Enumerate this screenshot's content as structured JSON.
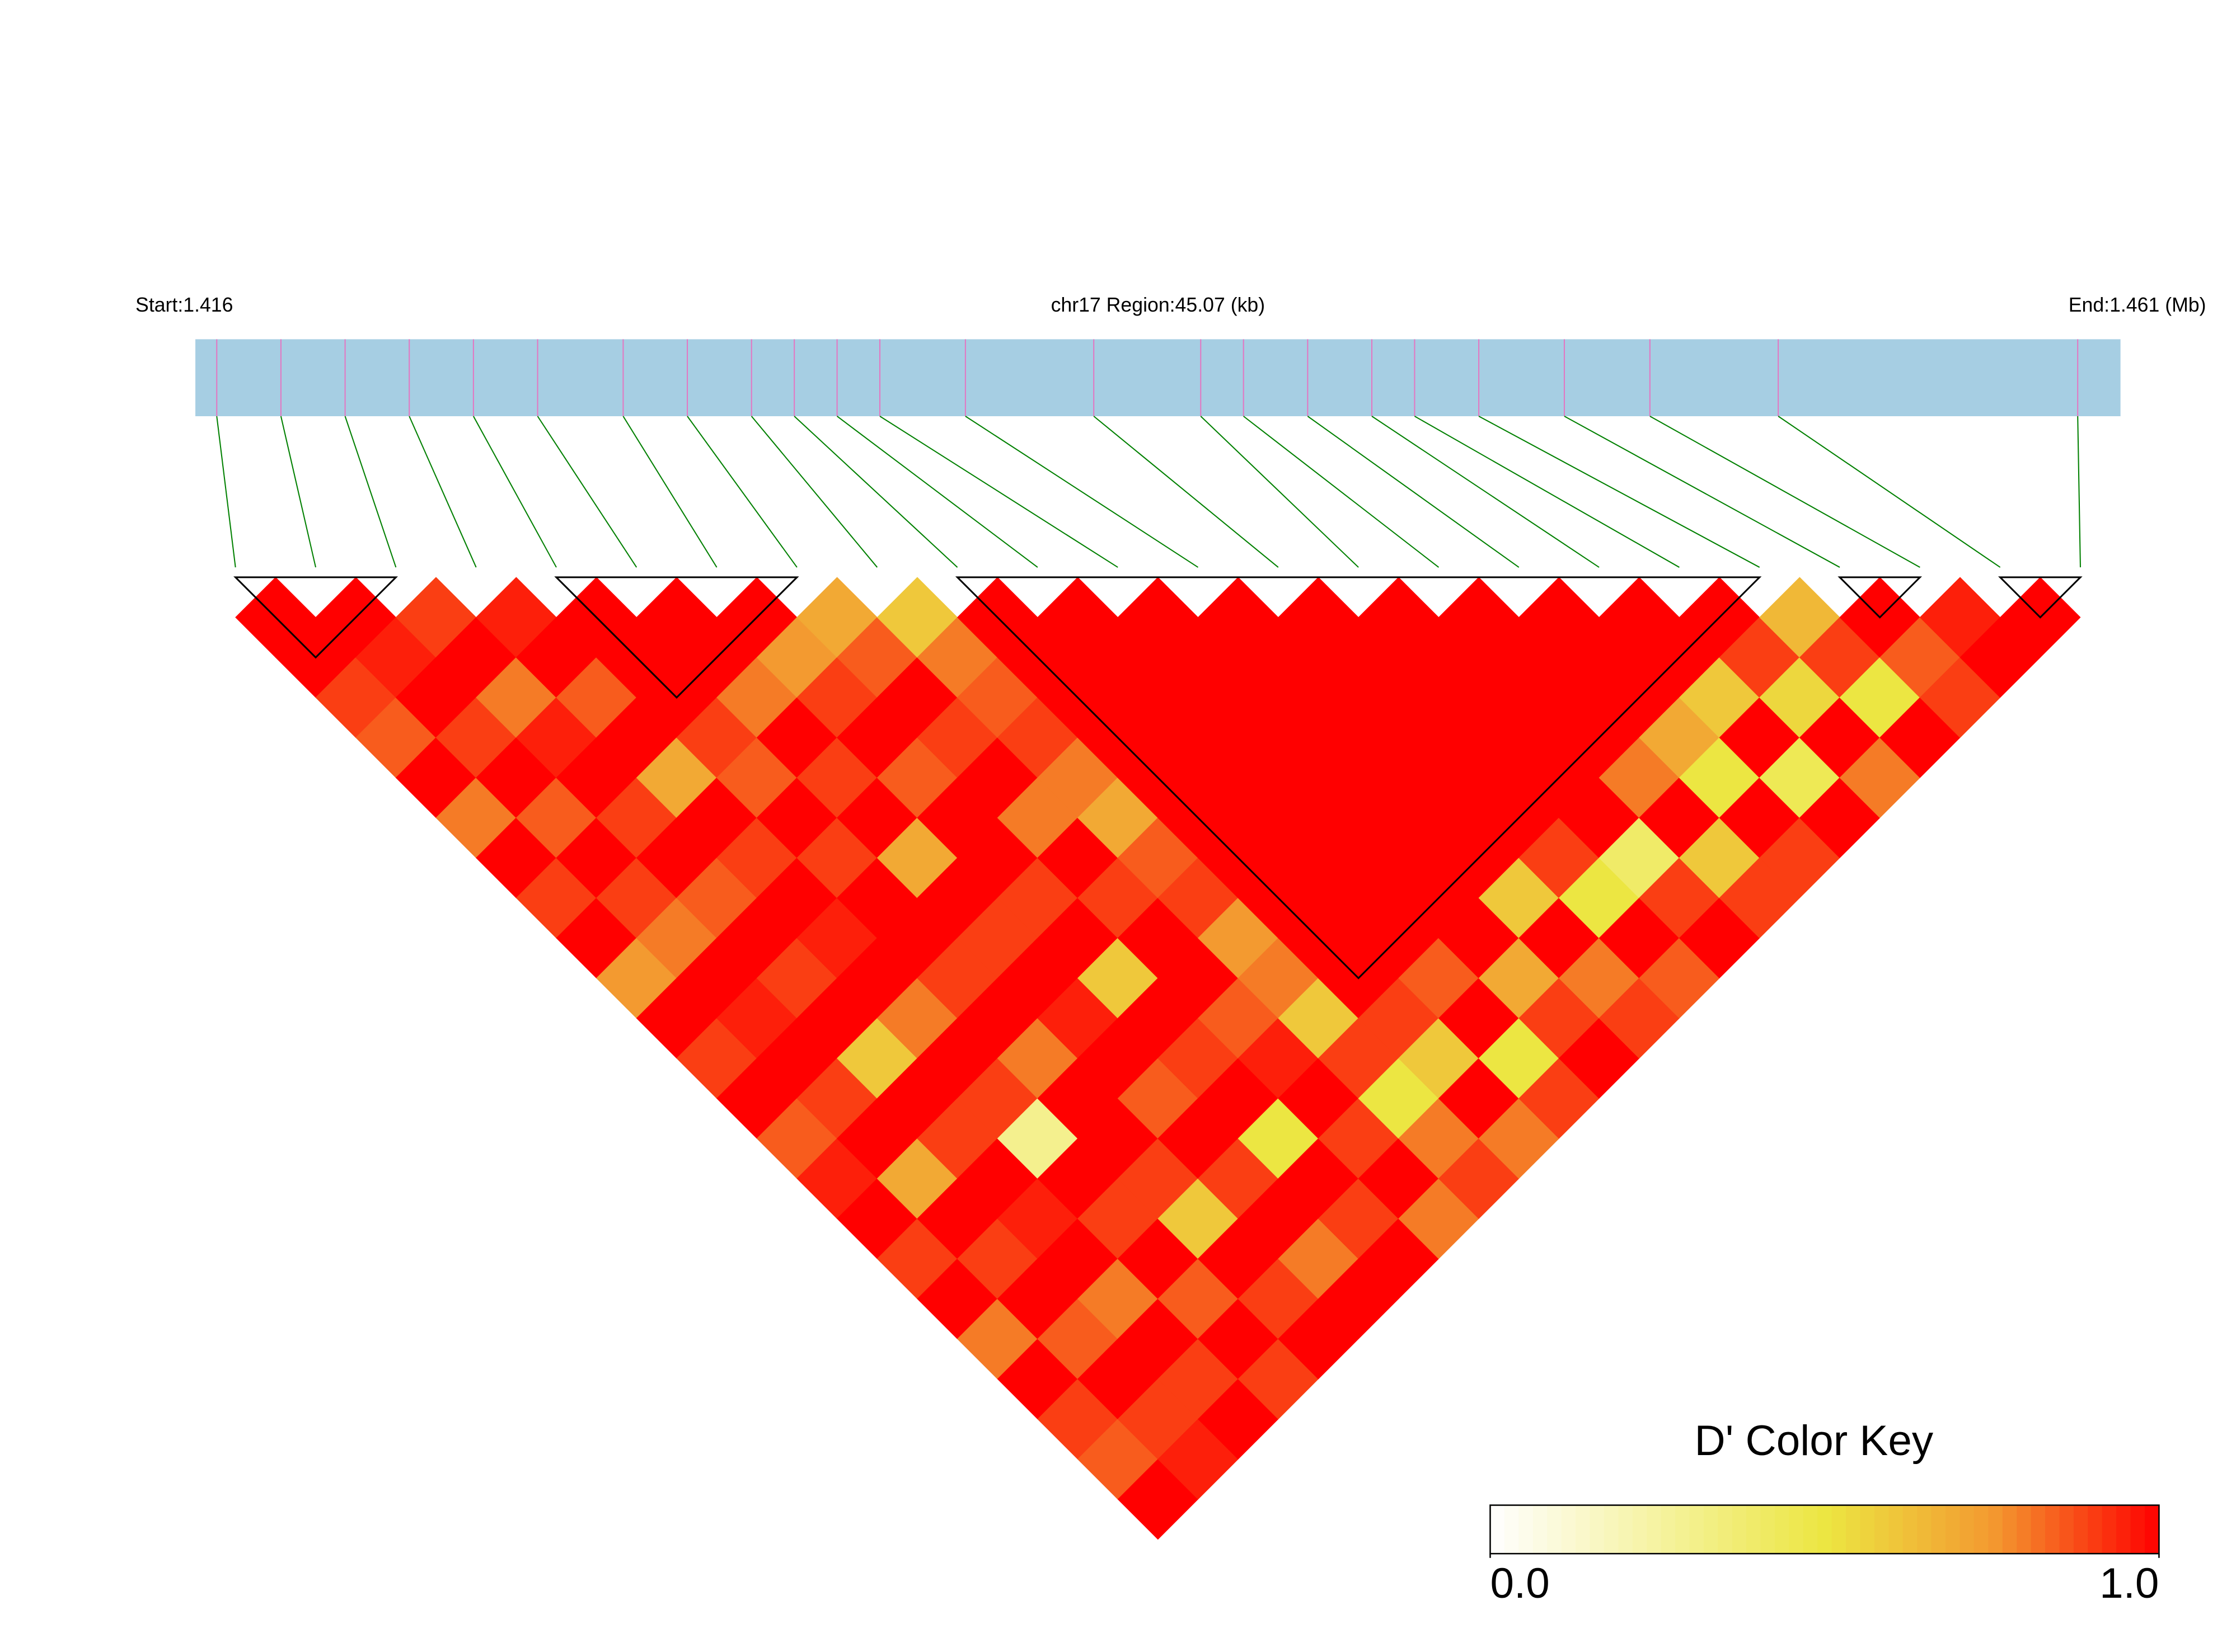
{
  "chart_data": {
    "type": "ld_heatmap",
    "start_label": "Start:1.416",
    "region_label": "chr17 Region:45.07 (kb)",
    "end_label": "End:1.461 (Mb)",
    "xlim": [
      1.416,
      1.461
    ],
    "snp_positions": [
      1.4165,
      1.418,
      1.4195,
      1.421,
      1.4225,
      1.424,
      1.426,
      1.4275,
      1.429,
      1.43,
      1.431,
      1.432,
      1.434,
      1.437,
      1.4395,
      1.4405,
      1.442,
      1.4435,
      1.4445,
      1.446,
      1.448,
      1.45,
      1.453,
      1.46
    ],
    "dprime": [
      [
        1,
        1,
        0.9,
        0.85,
        1,
        0.8,
        1,
        0.9,
        1,
        0.75,
        1,
        0.9,
        1,
        0.85,
        0.95,
        1,
        0.9,
        1,
        0.8,
        1,
        0.9,
        0.85,
        1
      ],
      [
        1,
        0.95,
        1,
        0.9,
        1,
        0.85,
        1,
        0.9,
        0.8,
        1,
        0.95,
        1,
        0.9,
        1,
        0.7,
        1,
        0.9,
        1,
        0.85,
        1,
        0.9,
        0.95
      ],
      [
        0.9,
        1,
        0.8,
        0.95,
        1,
        0.9,
        1,
        0.85,
        1,
        0.9,
        1,
        0.6,
        1,
        0.9,
        1,
        0.95,
        1,
        0.8,
        1,
        0.9,
        1
      ],
      [
        0.95,
        1,
        0.85,
        1,
        0.7,
        1,
        0.9,
        1,
        0.95,
        1,
        0.8,
        1,
        0.9,
        0.3,
        1,
        0.9,
        1,
        0.85,
        1,
        0.9
      ],
      [
        1,
        1,
        1,
        0.9,
        0.85,
        1,
        0.9,
        1,
        1,
        0.9,
        1,
        0.8,
        1,
        1,
        0.9,
        0.6,
        1,
        0.9,
        1
      ],
      [
        1,
        1,
        0.8,
        1,
        0.9,
        1,
        0.7,
        1,
        0.9,
        1,
        0.95,
        1,
        0.85,
        1,
        0.9,
        1,
        0.8,
        1
      ],
      [
        1,
        0.75,
        0.9,
        1,
        0.85,
        1,
        1,
        0.9,
        1,
        0.6,
        1,
        0.9,
        1,
        0.5,
        1,
        0.9,
        1
      ],
      [
        0.7,
        0.85,
        1,
        0.9,
        1,
        0.8,
        1,
        0.9,
        1,
        1,
        0.85,
        0.95,
        1,
        0.9,
        1,
        0.8
      ],
      [
        0.6,
        0.8,
        0.85,
        0.9,
        0.8,
        0.7,
        0.85,
        0.9,
        0.75,
        0.8,
        0.6,
        0.9,
        0.5,
        0.8,
        0.9
      ],
      [
        1,
        1,
        1,
        1,
        1,
        1,
        1,
        1,
        1,
        1,
        0.9,
        0.6,
        1,
        0.8
      ],
      [
        1,
        1,
        1,
        1,
        1,
        1,
        1,
        1,
        1,
        0.85,
        1,
        0.5,
        0.9
      ],
      [
        1,
        1,
        1,
        1,
        1,
        1,
        1,
        1,
        1,
        0.7,
        0.9,
        1
      ],
      [
        1,
        1,
        1,
        1,
        1,
        1,
        1,
        0.6,
        1,
        0.8,
        0.9
      ],
      [
        1,
        1,
        1,
        1,
        1,
        1,
        0.9,
        0.5,
        1,
        0.85
      ],
      [
        1,
        1,
        1,
        1,
        1,
        1,
        0.4,
        0.9,
        1
      ],
      [
        1,
        1,
        1,
        1,
        0.8,
        1,
        0.6,
        0.9
      ],
      [
        1,
        1,
        1,
        0.7,
        0.5,
        1,
        0.9
      ],
      [
        1,
        1,
        0.6,
        1,
        0.45,
        1
      ],
      [
        1,
        0.9,
        0.55,
        1,
        0.8
      ],
      [
        0.65,
        0.9,
        0.5,
        1
      ],
      [
        1,
        0.85,
        0.9
      ],
      [
        0.95,
        1
      ],
      [
        1
      ]
    ],
    "blocks": [
      [
        0,
        2
      ],
      [
        4,
        7
      ],
      [
        9,
        19
      ],
      [
        20,
        21
      ],
      [
        22,
        23
      ]
    ],
    "bar_color": "#a6cee3",
    "snp_line_color": "#e377c2",
    "connector_color": "#008000",
    "block_color": "#000000",
    "colorscale": [
      [
        0,
        "#ffffff"
      ],
      [
        0.5,
        "#ece642"
      ],
      [
        0.75,
        "#f39a30"
      ],
      [
        1,
        "#ff0000"
      ]
    ],
    "key_title": "D' Color Key",
    "clim": [
      0,
      1
    ],
    "cticks": [
      {
        "value": 0,
        "label": "0.0"
      },
      {
        "value": 1,
        "label": "1.0"
      }
    ]
  }
}
